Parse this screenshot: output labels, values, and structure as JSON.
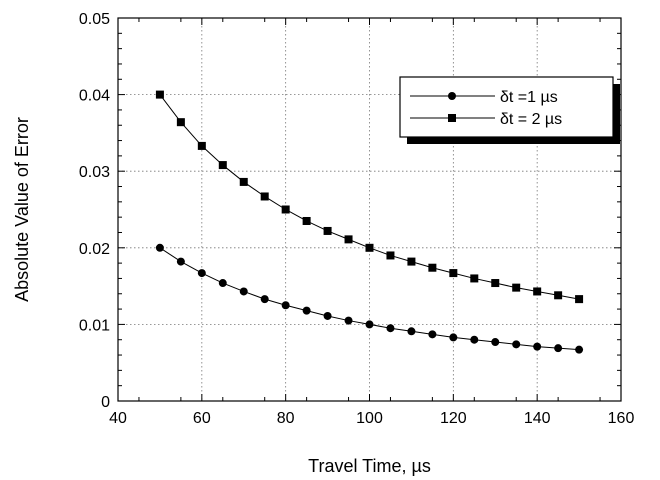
{
  "chart_data": {
    "type": "line",
    "title": "",
    "xlabel": "Travel Time, µs",
    "ylabel": "Absolute Value of Error",
    "xlim": [
      40,
      160
    ],
    "ylim": [
      0,
      0.05
    ],
    "x_ticks": [
      "40",
      "60",
      "80",
      "100",
      "120",
      "140",
      "160"
    ],
    "y_ticks": [
      "0",
      "0.01",
      "0.02",
      "0.03",
      "0.04",
      "0.05"
    ],
    "grid": true,
    "legend_position": "top-right",
    "x": [
      50,
      55,
      60,
      65,
      70,
      75,
      80,
      85,
      90,
      95,
      100,
      105,
      110,
      115,
      120,
      125,
      130,
      135,
      140,
      145,
      150
    ],
    "series": [
      {
        "name": "δt =1 µs",
        "marker": "circle",
        "values": [
          0.02,
          0.0182,
          0.0167,
          0.0154,
          0.0143,
          0.0133,
          0.0125,
          0.0118,
          0.0111,
          0.0105,
          0.01,
          0.0095,
          0.0091,
          0.0087,
          0.0083,
          0.008,
          0.0077,
          0.0074,
          0.0071,
          0.0069,
          0.0067
        ]
      },
      {
        "name": "δt = 2 µs",
        "marker": "square",
        "values": [
          0.04,
          0.0364,
          0.0333,
          0.0308,
          0.0286,
          0.0267,
          0.025,
          0.0235,
          0.0222,
          0.0211,
          0.02,
          0.019,
          0.0182,
          0.0174,
          0.0167,
          0.016,
          0.0154,
          0.0148,
          0.0143,
          0.0138,
          0.0133
        ]
      }
    ]
  }
}
